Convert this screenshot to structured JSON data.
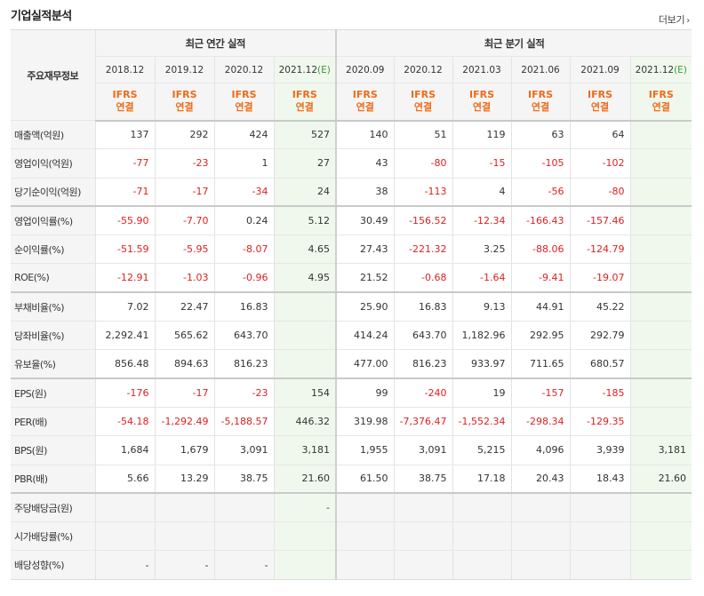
{
  "section_title": "기업실적분석",
  "more_label": "더보기",
  "more_icon": "chevron-right-icon",
  "row_header_label": "주요재무정보",
  "groups": [
    {
      "label": "최근 연간 실적",
      "span": 4
    },
    {
      "label": "최근 분기 실적",
      "span": 6
    }
  ],
  "periods": [
    {
      "label": "2018.12",
      "estimate": false
    },
    {
      "label": "2019.12",
      "estimate": false
    },
    {
      "label": "2020.12",
      "estimate": false
    },
    {
      "label": "2021.12",
      "estimate": true
    },
    {
      "label": "2020.09",
      "estimate": false
    },
    {
      "label": "2020.12",
      "estimate": false
    },
    {
      "label": "2021.03",
      "estimate": false
    },
    {
      "label": "2021.06",
      "estimate": false
    },
    {
      "label": "2021.09",
      "estimate": false
    },
    {
      "label": "2021.12",
      "estimate": true
    }
  ],
  "estimate_mark": "(E)",
  "source_line1": "IFRS",
  "source_line2": "연결",
  "rows": [
    {
      "label": "매출액(억원)",
      "values": [
        "137",
        "292",
        "424",
        "527",
        "140",
        "51",
        "119",
        "63",
        "64",
        ""
      ]
    },
    {
      "label": "영업이익(억원)",
      "values": [
        "-77",
        "-23",
        "1",
        "27",
        "43",
        "-80",
        "-15",
        "-105",
        "-102",
        ""
      ]
    },
    {
      "label": "당기순이익(억원)",
      "values": [
        "-71",
        "-17",
        "-34",
        "24",
        "38",
        "-113",
        "4",
        "-56",
        "-80",
        ""
      ],
      "group_end": true
    },
    {
      "label": "영업이익률(%)",
      "values": [
        "-55.90",
        "-7.70",
        "0.24",
        "5.12",
        "30.49",
        "-156.52",
        "-12.34",
        "-166.43",
        "-157.46",
        ""
      ]
    },
    {
      "label": "순이익률(%)",
      "values": [
        "-51.59",
        "-5.95",
        "-8.07",
        "4.65",
        "27.43",
        "-221.32",
        "3.25",
        "-88.06",
        "-124.79",
        ""
      ]
    },
    {
      "label": "ROE(%)",
      "values": [
        "-12.91",
        "-1.03",
        "-0.96",
        "4.95",
        "21.52",
        "-0.68",
        "-1.64",
        "-9.41",
        "-19.07",
        ""
      ],
      "group_end": true
    },
    {
      "label": "부채비율(%)",
      "values": [
        "7.02",
        "22.47",
        "16.83",
        "",
        "25.90",
        "16.83",
        "9.13",
        "44.91",
        "45.22",
        ""
      ]
    },
    {
      "label": "당좌비율(%)",
      "values": [
        "2,292.41",
        "565.62",
        "643.70",
        "",
        "414.24",
        "643.70",
        "1,182.96",
        "292.95",
        "292.79",
        ""
      ]
    },
    {
      "label": "유보율(%)",
      "values": [
        "856.48",
        "894.63",
        "816.23",
        "",
        "477.00",
        "816.23",
        "933.97",
        "711.65",
        "680.57",
        ""
      ],
      "group_end": true
    },
    {
      "label": "EPS(원)",
      "values": [
        "-176",
        "-17",
        "-23",
        "154",
        "99",
        "-240",
        "19",
        "-157",
        "-185",
        ""
      ]
    },
    {
      "label": "PER(배)",
      "values": [
        "-54.18",
        "-1,292.49",
        "-5,188.57",
        "446.32",
        "319.98",
        "-7,376.47",
        "-1,552.34",
        "-298.34",
        "-129.35",
        ""
      ]
    },
    {
      "label": "BPS(원)",
      "values": [
        "1,684",
        "1,679",
        "3,091",
        "3,181",
        "1,955",
        "3,091",
        "5,215",
        "4,096",
        "3,939",
        "3,181"
      ]
    },
    {
      "label": "PBR(배)",
      "values": [
        "5.66",
        "13.29",
        "38.75",
        "21.60",
        "61.50",
        "38.75",
        "17.18",
        "20.43",
        "18.43",
        "21.60"
      ],
      "group_end": true
    },
    {
      "label": "주당배당금(원)",
      "values": [
        "",
        "",
        "",
        "-",
        "",
        "",
        "",
        "",
        "",
        ""
      ],
      "shaded": true
    },
    {
      "label": "시가배당률(%)",
      "values": [
        "",
        "",
        "",
        "",
        "",
        "",
        "",
        "",
        "",
        ""
      ],
      "shaded": true
    },
    {
      "label": "배당성향(%)",
      "values": [
        "-",
        "-",
        "-",
        "",
        "",
        "",
        "",
        "",
        "",
        ""
      ],
      "shaded": true
    }
  ],
  "colors": {
    "negative": "#e02020",
    "source_label": "#f06a18",
    "estimate_bg": "#f0f8ee",
    "estimate_mark": "#3a9a3a",
    "header_bg": "#f5f5f5"
  }
}
